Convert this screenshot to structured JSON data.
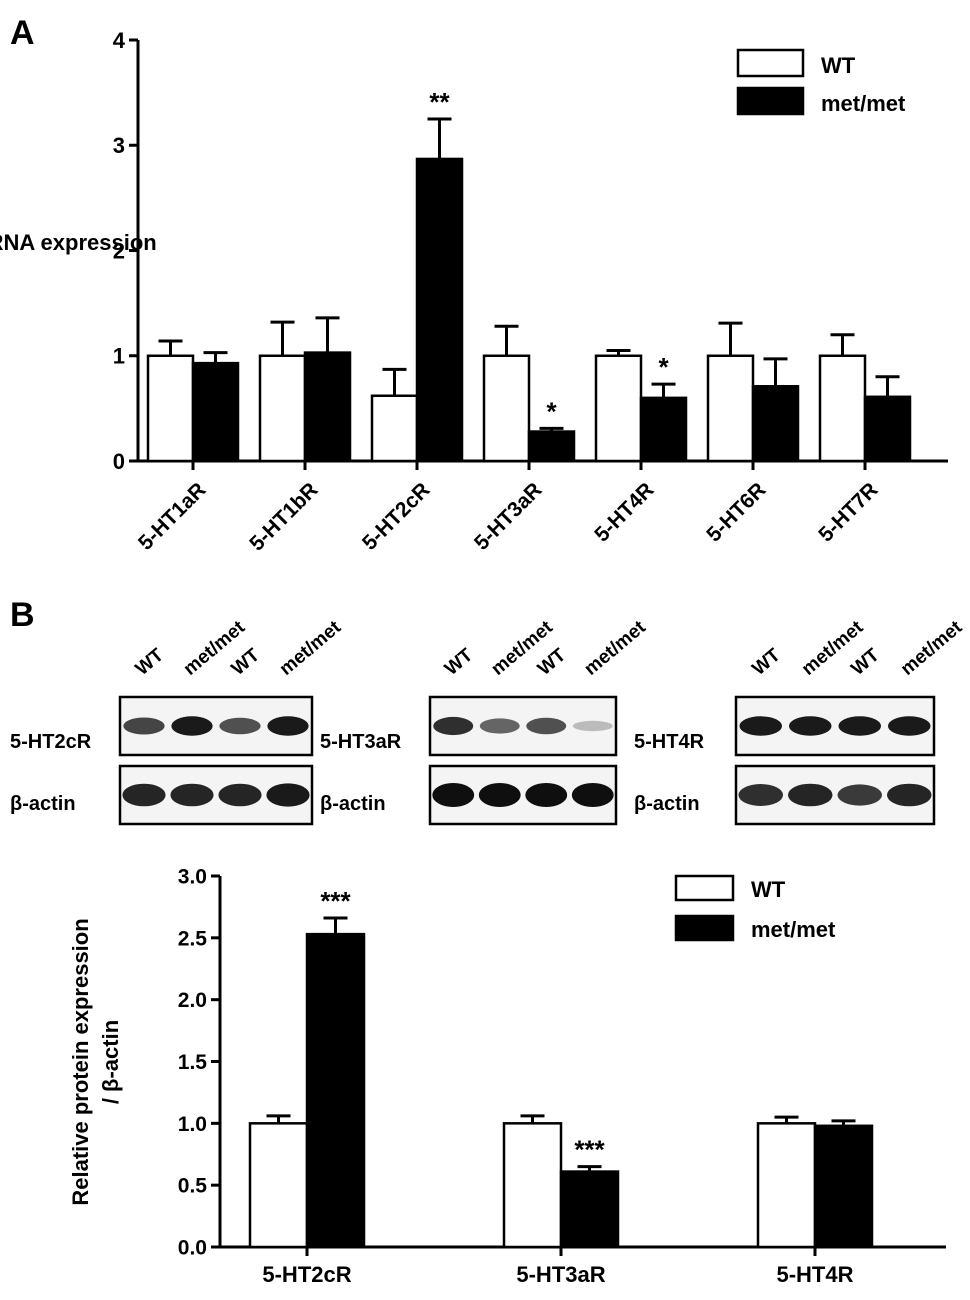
{
  "panels": [
    {
      "id": "A",
      "label": "A"
    },
    {
      "id": "B",
      "label": "B"
    }
  ],
  "blots": [
    {
      "protein_label": "5-HT2cR",
      "control_label": "β-actin",
      "lanes": [
        "WT",
        "met/met",
        "WT",
        "met/met"
      ],
      "target_intensity": [
        0.75,
        0.95,
        0.7,
        0.95
      ],
      "control_intensity": [
        0.9,
        0.9,
        0.9,
        0.95
      ]
    },
    {
      "protein_label": "5-HT3aR",
      "control_label": "β-actin",
      "lanes": [
        "WT",
        "met/met",
        "WT",
        "met/met"
      ],
      "target_intensity": [
        0.85,
        0.6,
        0.7,
        0.2
      ],
      "control_intensity": [
        1.0,
        1.0,
        1.0,
        1.0
      ]
    },
    {
      "protein_label": "5-HT4R",
      "control_label": "β-actin",
      "lanes": [
        "WT",
        "met/met",
        "WT",
        "met/met"
      ],
      "target_intensity": [
        0.95,
        0.95,
        0.95,
        0.95
      ],
      "control_intensity": [
        0.85,
        0.9,
        0.8,
        0.9
      ]
    }
  ],
  "chart_data": [
    {
      "type": "bar",
      "panel": "A",
      "ylabel": "Normalized mRNA expression",
      "xlabel": "",
      "ylim": [
        0,
        4
      ],
      "yticks": [
        "0",
        "1",
        "2",
        "3",
        "4"
      ],
      "categories": [
        "5-HT1aR",
        "5-HT1bR",
        "5-HT2cR",
        "5-HT3aR",
        "5-HT4R",
        "5-HT6R",
        "5-HT7R"
      ],
      "legend_position": "top-right",
      "series": [
        {
          "name": "WT",
          "color": "#ffffff",
          "values": [
            1.0,
            1.0,
            0.62,
            1.0,
            1.0,
            1.0,
            1.0
          ],
          "errors": [
            0.14,
            0.32,
            0.25,
            0.28,
            0.05,
            0.31,
            0.2
          ]
        },
        {
          "name": "met/met",
          "color": "#000000",
          "values": [
            0.93,
            1.03,
            2.87,
            0.28,
            0.6,
            0.71,
            0.61
          ],
          "errors": [
            0.1,
            0.33,
            0.38,
            0.03,
            0.13,
            0.26,
            0.19
          ]
        }
      ],
      "annotations": [
        {
          "category": "5-HT2cR",
          "series": "met/met",
          "text": "**"
        },
        {
          "category": "5-HT3aR",
          "series": "met/met",
          "text": "*"
        },
        {
          "category": "5-HT4R",
          "series": "met/met",
          "text": "*"
        }
      ]
    },
    {
      "type": "bar",
      "panel": "B",
      "ylabel": "Relative protein expression / β-actin",
      "xlabel": "",
      "ylim": [
        0,
        3
      ],
      "yticks": [
        "0.0",
        "0.5",
        "1.0",
        "1.5",
        "2.0",
        "2.5",
        "3.0"
      ],
      "categories": [
        "5-HT2cR",
        "5-HT3aR",
        "5-HT4R"
      ],
      "legend_position": "top-right",
      "series": [
        {
          "name": "WT",
          "color": "#ffffff",
          "values": [
            1.0,
            1.0,
            1.0
          ],
          "errors": [
            0.06,
            0.06,
            0.05
          ]
        },
        {
          "name": "met/met",
          "color": "#000000",
          "values": [
            2.53,
            0.61,
            0.98
          ],
          "errors": [
            0.13,
            0.04,
            0.04
          ]
        }
      ],
      "annotations": [
        {
          "category": "5-HT2cR",
          "series": "met/met",
          "text": "***"
        },
        {
          "category": "5-HT3aR",
          "series": "met/met",
          "text": "***"
        }
      ]
    }
  ]
}
